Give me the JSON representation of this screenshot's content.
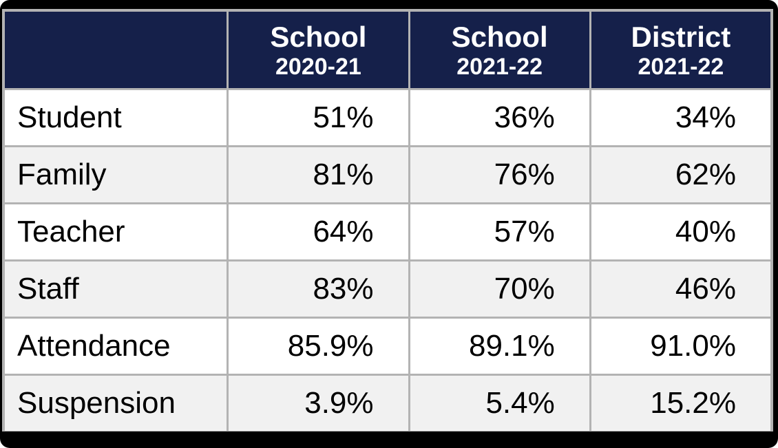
{
  "chart_data": {
    "type": "table",
    "title": "",
    "columns": [
      "",
      "School 2020-21",
      "School 2021-22",
      "District 2021-22"
    ],
    "rows": [
      [
        "Student",
        "51%",
        "36%",
        "34%"
      ],
      [
        "Family",
        "81%",
        "76%",
        "62%"
      ],
      [
        "Teacher",
        "64%",
        "57%",
        "40%"
      ],
      [
        "Staff",
        "83%",
        "70%",
        "46%"
      ],
      [
        "Attendance",
        "85.9%",
        "89.1%",
        "91.0%"
      ],
      [
        "Suspension",
        "3.9%",
        "5.4%",
        "15.2%"
      ]
    ]
  },
  "table": {
    "columns": [
      {
        "label": "",
        "sublabel": ""
      },
      {
        "label": "School",
        "sublabel": "2020-21"
      },
      {
        "label": "School",
        "sublabel": "2021-22"
      },
      {
        "label": "District",
        "sublabel": "2021-22"
      }
    ],
    "rows": [
      {
        "label": "Student",
        "values": [
          "51%",
          "36%",
          "34%"
        ]
      },
      {
        "label": "Family",
        "values": [
          "81%",
          "76%",
          "62%"
        ]
      },
      {
        "label": "Teacher",
        "values": [
          "64%",
          "57%",
          "40%"
        ]
      },
      {
        "label": "Staff",
        "values": [
          "83%",
          "70%",
          "46%"
        ]
      },
      {
        "label": "Attendance",
        "values": [
          "85.9%",
          "89.1%",
          "91.0%"
        ]
      },
      {
        "label": "Suspension",
        "values": [
          "3.9%",
          "5.4%",
          "15.2%"
        ]
      }
    ]
  },
  "colors": {
    "frame": "#000000",
    "header_bg": "#15204A",
    "header_text": "#ffffff",
    "grid": "#b3b3b3",
    "row_bg": "#ffffff",
    "row_alt_bg": "#f1f1f1",
    "body_text": "#000000"
  }
}
